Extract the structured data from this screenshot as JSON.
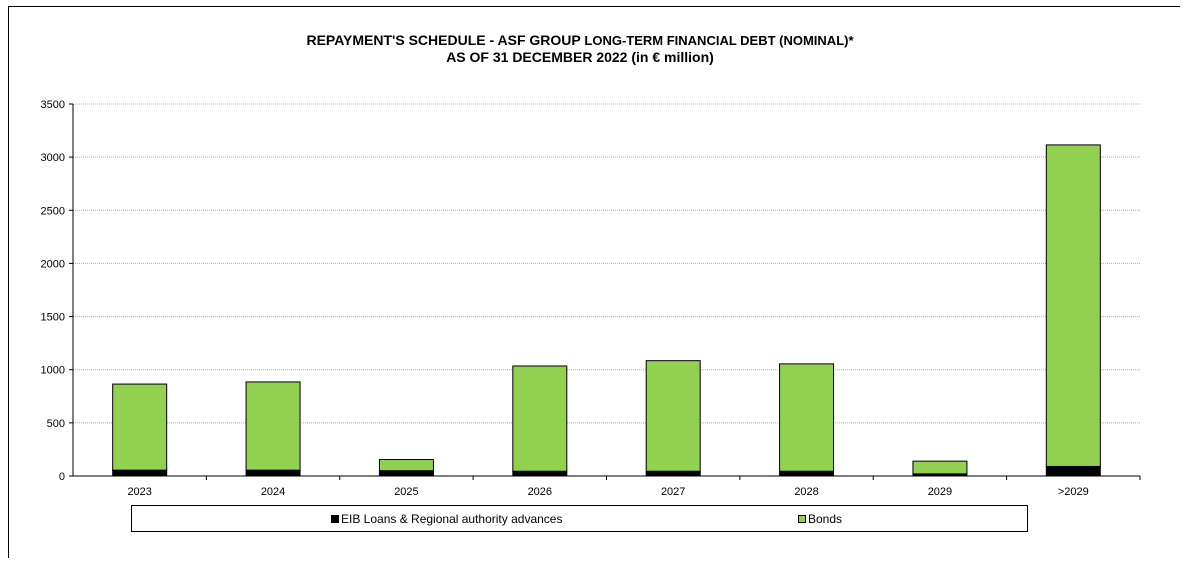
{
  "chart_data": {
    "type": "bar",
    "stacked": true,
    "title_line1_bold": "REPAYMENT'S SCHEDULE - ASF GROUP",
    "title_line1_rest": "LONG-TERM FINANCIAL  DEBT (NOMINAL)*",
    "title_line2": "AS OF 31 DECEMBER 2022 (in € million)",
    "categories": [
      "2023",
      "2024",
      "2025",
      "2026",
      "2027",
      "2028",
      "2029",
      ">2029"
    ],
    "series": [
      {
        "name": "EIB Loans & Regional authority advances",
        "color": "#000000",
        "values": [
          55,
          55,
          50,
          45,
          45,
          45,
          20,
          90
        ]
      },
      {
        "name": "Bonds",
        "color": "#92d050",
        "values": [
          810,
          830,
          105,
          990,
          1040,
          1010,
          120,
          3025
        ]
      }
    ],
    "ylim": [
      0,
      3500
    ],
    "yticks": [
      0,
      500,
      1000,
      1500,
      2000,
      2500,
      3000,
      3500
    ],
    "grid": true,
    "legend_position": "bottom"
  }
}
